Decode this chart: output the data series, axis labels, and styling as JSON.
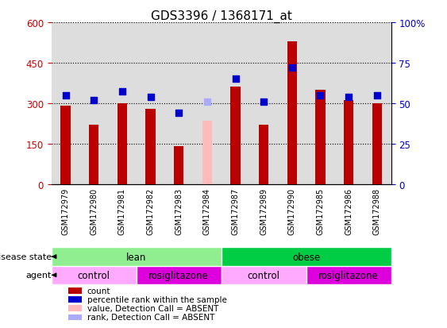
{
  "title": "GDS3396 / 1368171_at",
  "samples": [
    "GSM172979",
    "GSM172980",
    "GSM172981",
    "GSM172982",
    "GSM172983",
    "GSM172984",
    "GSM172987",
    "GSM172989",
    "GSM172990",
    "GSM172985",
    "GSM172986",
    "GSM172988"
  ],
  "bar_values": [
    290,
    220,
    300,
    280,
    140,
    null,
    360,
    220,
    530,
    350,
    310,
    300
  ],
  "absent_bar_value": 235,
  "absent_bar_index": 5,
  "rank_values": [
    55,
    52,
    57,
    54,
    44,
    51,
    65,
    51,
    72,
    55,
    54,
    55
  ],
  "rank_colors": [
    "#0000cc",
    "#0000cc",
    "#0000cc",
    "#0000cc",
    "#0000cc",
    "#aaaaff",
    "#0000cc",
    "#0000cc",
    "#0000cc",
    "#0000cc",
    "#0000cc",
    "#0000cc"
  ],
  "ylim_left": [
    0,
    600
  ],
  "yticks_left": [
    0,
    150,
    300,
    450,
    600
  ],
  "yticks_right": [
    0,
    25,
    50,
    75,
    100
  ],
  "ytick_labels_right": [
    "0",
    "25",
    "50",
    "75",
    "100%"
  ],
  "disease_state_groups": [
    {
      "label": "lean",
      "start": 0,
      "end": 6,
      "color": "#90ee90"
    },
    {
      "label": "obese",
      "start": 6,
      "end": 12,
      "color": "#00cc44"
    }
  ],
  "agent_groups": [
    {
      "label": "control",
      "start": 0,
      "end": 3,
      "color": "#ffaaff"
    },
    {
      "label": "rosiglitazone",
      "start": 3,
      "end": 6,
      "color": "#dd00dd"
    },
    {
      "label": "control",
      "start": 6,
      "end": 9,
      "color": "#ffaaff"
    },
    {
      "label": "rosiglitazone",
      "start": 9,
      "end": 12,
      "color": "#dd00dd"
    }
  ],
  "bar_color": "#bb0000",
  "absent_bar_color": "#ffbbbb",
  "axis_color_left": "#cc0000",
  "axis_color_right": "#0000cc",
  "rank_marker_size": 40,
  "bar_width": 0.35,
  "plot_bg": "#dddddd",
  "legend": [
    {
      "color": "#bb0000",
      "label": "count"
    },
    {
      "color": "#0000cc",
      "label": "percentile rank within the sample"
    },
    {
      "color": "#ffbbbb",
      "label": "value, Detection Call = ABSENT"
    },
    {
      "color": "#aaaaff",
      "label": "rank, Detection Call = ABSENT"
    }
  ]
}
